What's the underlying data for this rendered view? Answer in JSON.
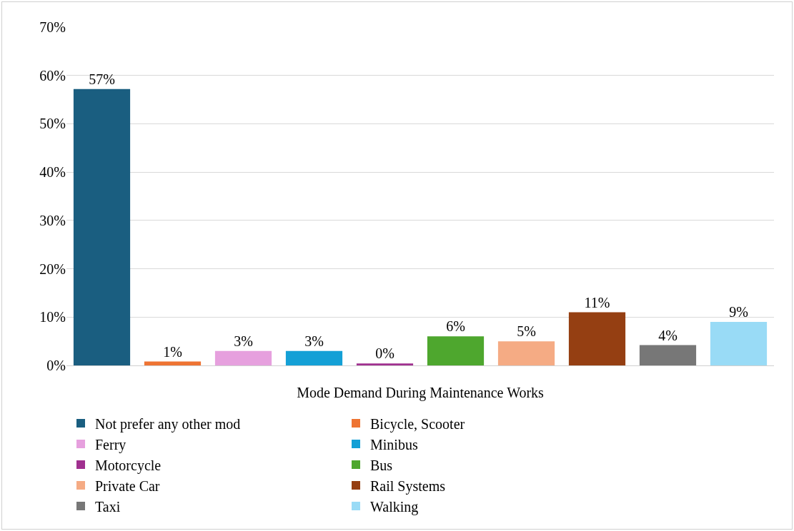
{
  "chart_data": {
    "type": "bar",
    "xlabel": "Mode Demand During Maintenance Works",
    "categories": [
      null,
      null,
      null,
      null,
      null,
      null,
      null,
      null,
      null,
      null
    ],
    "series": [
      {
        "name": "Not prefer any other mod",
        "color": "#1a5e80",
        "values": [
          57.2,
          null,
          null,
          null,
          null,
          null,
          null,
          null,
          null,
          null
        ],
        "value_labels": [
          "57%",
          null,
          null,
          null,
          null,
          null,
          null,
          null,
          null,
          null
        ]
      },
      {
        "name": "Bicycle, Scooter",
        "color": "#ee7433",
        "values": [
          null,
          0.8,
          null,
          null,
          null,
          null,
          null,
          null,
          null,
          null
        ],
        "value_labels": [
          null,
          "1%",
          null,
          null,
          null,
          null,
          null,
          null,
          null,
          null
        ]
      },
      {
        "name": "Ferry",
        "color": "#e6a0de",
        "values": [
          null,
          null,
          3,
          null,
          null,
          null,
          null,
          null,
          null,
          null
        ],
        "value_labels": [
          null,
          null,
          "3%",
          null,
          null,
          null,
          null,
          null,
          null,
          null
        ]
      },
      {
        "name": "Minibus",
        "color": "#14a0d6",
        "values": [
          null,
          null,
          null,
          3,
          null,
          null,
          null,
          null,
          null,
          null
        ],
        "value_labels": [
          null,
          null,
          null,
          "3%",
          null,
          null,
          null,
          null,
          null,
          null
        ]
      },
      {
        "name": "Motorcycle",
        "color": "#a0308f",
        "values": [
          null,
          null,
          null,
          null,
          0.4,
          null,
          null,
          null,
          null,
          null
        ],
        "value_labels": [
          null,
          null,
          null,
          null,
          "0%",
          null,
          null,
          null,
          null,
          null
        ]
      },
      {
        "name": "Bus",
        "color": "#4ea72e",
        "values": [
          null,
          null,
          null,
          null,
          null,
          6,
          null,
          null,
          null,
          null
        ],
        "value_labels": [
          null,
          null,
          null,
          null,
          null,
          "6%",
          null,
          null,
          null,
          null
        ]
      },
      {
        "name": "Private Car",
        "color": "#f5ab84",
        "values": [
          null,
          null,
          null,
          null,
          null,
          null,
          5,
          null,
          null,
          null
        ],
        "value_labels": [
          null,
          null,
          null,
          null,
          null,
          null,
          "5%",
          null,
          null,
          null
        ]
      },
      {
        "name": "Rail Systems",
        "color": "#953f12",
        "values": [
          null,
          null,
          null,
          null,
          null,
          null,
          null,
          11,
          null,
          null
        ],
        "value_labels": [
          null,
          null,
          null,
          null,
          null,
          null,
          null,
          "11%",
          null,
          null
        ]
      },
      {
        "name": "Taxi",
        "color": "#777777",
        "values": [
          null,
          null,
          null,
          null,
          null,
          null,
          null,
          null,
          4.2,
          null
        ],
        "value_labels": [
          null,
          null,
          null,
          null,
          null,
          null,
          null,
          null,
          "4%",
          null
        ]
      },
      {
        "name": "Walking",
        "color": "#99dbf6",
        "values": [
          null,
          null,
          null,
          null,
          null,
          null,
          null,
          null,
          null,
          9
        ],
        "value_labels": [
          null,
          null,
          null,
          null,
          null,
          null,
          null,
          null,
          null,
          "9%"
        ]
      }
    ],
    "ylim": [
      0,
      70
    ],
    "yticks": [
      {
        "value": 0,
        "label": "0%"
      },
      {
        "value": 10,
        "label": "10%"
      },
      {
        "value": 20,
        "label": "20%"
      },
      {
        "value": 30,
        "label": "30%"
      },
      {
        "value": 40,
        "label": "40%"
      },
      {
        "value": 50,
        "label": "50%"
      },
      {
        "value": 60,
        "label": "60%"
      },
      {
        "value": 70,
        "label": "70%"
      }
    ],
    "grid": "y",
    "legend": "bottom",
    "tick_labels": "y"
  }
}
